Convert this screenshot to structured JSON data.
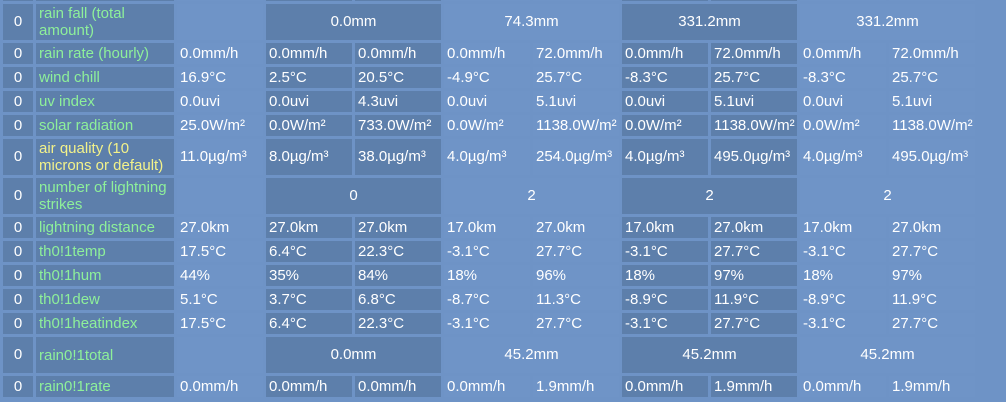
{
  "colors": {
    "background": "#6e93c6",
    "cell_dark": "#5d7fab",
    "cell_light": "#6f94c7",
    "label_green": "#8ef09a",
    "label_yellow": "#f3f28a",
    "text": "#ffffff"
  },
  "rows": [
    {
      "idx": "",
      "label": "",
      "cells": [
        "",
        "",
        "",
        "",
        "",
        "",
        "",
        "",
        ""
      ],
      "spacer": true
    },
    {
      "idx": "0",
      "label": "rain fall (total amount)",
      "merged": [
        "0.0mm",
        "74.3mm",
        "331.2mm",
        "331.2mm"
      ]
    },
    {
      "idx": "0",
      "label": "rain rate (hourly)",
      "cells": [
        "0.0mm/h",
        "0.0mm/h",
        "0.0mm/h",
        "0.0mm/h",
        "72.0mm/h",
        "0.0mm/h",
        "72.0mm/h",
        "0.0mm/h",
        "72.0mm/h"
      ]
    },
    {
      "idx": "0",
      "label": "wind chill",
      "cells": [
        "16.9°C",
        "2.5°C",
        "20.5°C",
        "-4.9°C",
        "25.7°C",
        "-8.3°C",
        "25.7°C",
        "-8.3°C",
        "25.7°C"
      ]
    },
    {
      "idx": "0",
      "label": "uv index",
      "cells": [
        "0.0uvi",
        "0.0uvi",
        "4.3uvi",
        "0.0uvi",
        "5.1uvi",
        "0.0uvi",
        "5.1uvi",
        "0.0uvi",
        "5.1uvi"
      ]
    },
    {
      "idx": "0",
      "label": "solar radiation",
      "cells": [
        "25.0W/m²",
        "0.0W/m²",
        "733.0W/m²",
        "0.0W/m²",
        "1138.0W/m²",
        "0.0W/m²",
        "1138.0W/m²",
        "0.0W/m²",
        "1138.0W/m²"
      ]
    },
    {
      "idx": "0",
      "label": "air quality (10 microns or default)",
      "yellow": true,
      "cells": [
        "11.0µg/m³",
        "8.0µg/m³",
        "38.0µg/m³",
        "4.0µg/m³",
        "254.0µg/m³",
        "4.0µg/m³",
        "495.0µg/m³",
        "4.0µg/m³",
        "495.0µg/m³"
      ]
    },
    {
      "idx": "0",
      "label": "number of lightning strikes",
      "merged": [
        "0",
        "2",
        "2",
        "2"
      ]
    },
    {
      "idx": "0",
      "label": "lightning distance",
      "cells": [
        "27.0km",
        "27.0km",
        "27.0km",
        "17.0km",
        "27.0km",
        "17.0km",
        "27.0km",
        "17.0km",
        "27.0km"
      ]
    },
    {
      "idx": "0",
      "label": "th0!1temp",
      "cells": [
        "17.5°C",
        "6.4°C",
        "22.3°C",
        "-3.1°C",
        "27.7°C",
        "-3.1°C",
        "27.7°C",
        "-3.1°C",
        "27.7°C"
      ]
    },
    {
      "idx": "0",
      "label": "th0!1hum",
      "cells": [
        "44%",
        "35%",
        "84%",
        "18%",
        "96%",
        "18%",
        "97%",
        "18%",
        "97%"
      ]
    },
    {
      "idx": "0",
      "label": "th0!1dew",
      "cells": [
        "5.1°C",
        "3.7°C",
        "6.8°C",
        "-8.7°C",
        "11.3°C",
        "-8.9°C",
        "11.9°C",
        "-8.9°C",
        "11.9°C"
      ]
    },
    {
      "idx": "0",
      "label": "th0!1heatindex",
      "cells": [
        "17.5°C",
        "6.4°C",
        "22.3°C",
        "-3.1°C",
        "27.7°C",
        "-3.1°C",
        "27.7°C",
        "-3.1°C",
        "27.7°C"
      ]
    },
    {
      "idx": "0",
      "label": "rain0!1total",
      "merged": [
        "0.0mm",
        "45.2mm",
        "45.2mm",
        "45.2mm"
      ]
    },
    {
      "idx": "0",
      "label": "rain0!1rate",
      "cells": [
        "0.0mm/h",
        "0.0mm/h",
        "0.0mm/h",
        "0.0mm/h",
        "1.9mm/h",
        "0.0mm/h",
        "1.9mm/h",
        "0.0mm/h",
        "1.9mm/h"
      ]
    }
  ]
}
